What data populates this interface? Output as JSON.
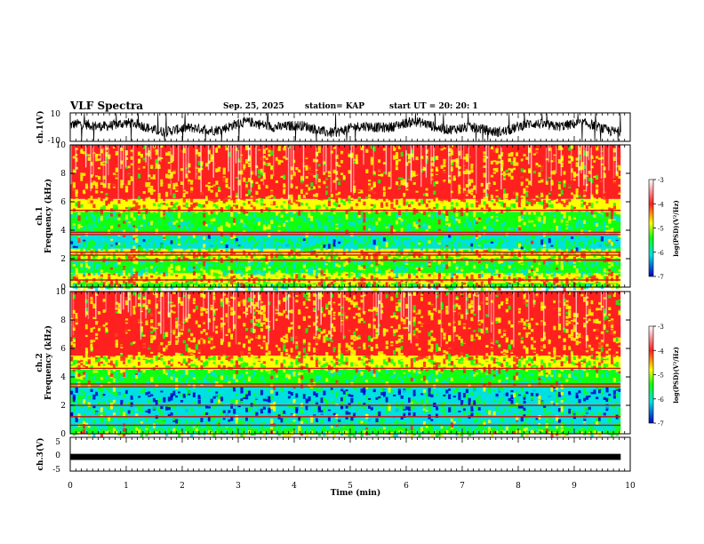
{
  "header": {
    "title": "VLF Spectra",
    "date": "Sep. 25, 2025",
    "station": "station= KAP",
    "start": "start  UT  =   20: 20: 1"
  },
  "colors": {
    "sp_low": "#0000c8",
    "sp_cyan": "#00e0e0",
    "sp_green": "#10ff10",
    "sp_yellow": "#ffff00",
    "sp_red": "#ff2020",
    "sp_white": "#ffffff",
    "trace": "#000000"
  },
  "chart_data": [
    {
      "type": "line",
      "name": "ch1-waveform",
      "ylabel": "ch.1(V)",
      "ylim": [
        -10,
        10
      ],
      "yticks": [
        "10",
        "-10"
      ],
      "xlim": [
        0,
        10
      ],
      "series": [
        {
          "name": "ch.1",
          "mean": 0,
          "amplitude": 6
        }
      ]
    },
    {
      "type": "heatmap",
      "name": "ch1-spectrogram",
      "ylabel": "ch.1\nFrequency  (kHz)",
      "ylim": [
        0,
        10
      ],
      "yticks": [
        "10",
        "8",
        "6",
        "4",
        "2",
        "0"
      ],
      "xlim": [
        0,
        9.83
      ],
      "colorbar": {
        "label": "log(PSD)(V²/Hz)",
        "range": [
          -7,
          -3
        ],
        "ticks": [
          "-3",
          "-4",
          "-5",
          "-6",
          "-7"
        ]
      },
      "bands_khz": [
        {
          "from": 0,
          "to": 0.3,
          "level": -4.4
        },
        {
          "from": 0.3,
          "to": 1.0,
          "level": -4.0
        },
        {
          "from": 1.0,
          "to": 2.0,
          "level": -4.8
        },
        {
          "from": 2.0,
          "to": 2.7,
          "level": -4.2
        },
        {
          "from": 2.7,
          "to": 3.8,
          "level": -5.1
        },
        {
          "from": 3.8,
          "to": 5.3,
          "level": -4.9
        },
        {
          "from": 5.3,
          "to": 6.2,
          "level": -4.0
        },
        {
          "from": 6.2,
          "to": 10.0,
          "level": -3.6
        }
      ],
      "lines_khz": [
        0.5,
        1.9,
        2.25,
        2.45,
        3.7,
        3.85,
        5.4
      ]
    },
    {
      "type": "heatmap",
      "name": "ch2-spectrogram",
      "ylabel": "ch.2\nFrequency  (kHz)",
      "ylim": [
        0,
        10
      ],
      "yticks": [
        "10",
        "8",
        "6",
        "4",
        "2",
        "0"
      ],
      "xlim": [
        0,
        9.83
      ],
      "colorbar": {
        "label": "log(PSD)(V²/Hz)",
        "range": [
          -7,
          -3
        ],
        "ticks": [
          "-3",
          "-4",
          "-5",
          "-6",
          "-7"
        ]
      },
      "bands_khz": [
        {
          "from": 0,
          "to": 0.4,
          "level": -4.5
        },
        {
          "from": 0.4,
          "to": 1.0,
          "level": -5.0
        },
        {
          "from": 1.0,
          "to": 2.5,
          "level": -5.3
        },
        {
          "from": 2.5,
          "to": 3.3,
          "level": -5.6
        },
        {
          "from": 3.3,
          "to": 4.5,
          "level": -4.9
        },
        {
          "from": 4.5,
          "to": 5.5,
          "level": -4.2
        },
        {
          "from": 5.5,
          "to": 10.0,
          "level": -3.6
        }
      ],
      "lines_khz": [
        0.6,
        1.2,
        2.0,
        3.3,
        3.5,
        4.6
      ]
    },
    {
      "type": "line",
      "name": "ch3-waveform",
      "ylabel": "ch.3(V)",
      "ylim": [
        -5,
        5
      ],
      "yticks": [
        "5",
        "0",
        "-5"
      ],
      "xlim": [
        0,
        10
      ],
      "series": [
        {
          "name": "ch.3",
          "mean": 0,
          "amplitude": 0.3
        }
      ]
    },
    {
      "type": "axis",
      "name": "time-axis",
      "xlabel": "Time  (min)",
      "xlim": [
        0,
        10
      ],
      "xticks": [
        "0",
        "1",
        "2",
        "3",
        "4",
        "5",
        "6",
        "7",
        "8",
        "9",
        "10"
      ]
    }
  ]
}
